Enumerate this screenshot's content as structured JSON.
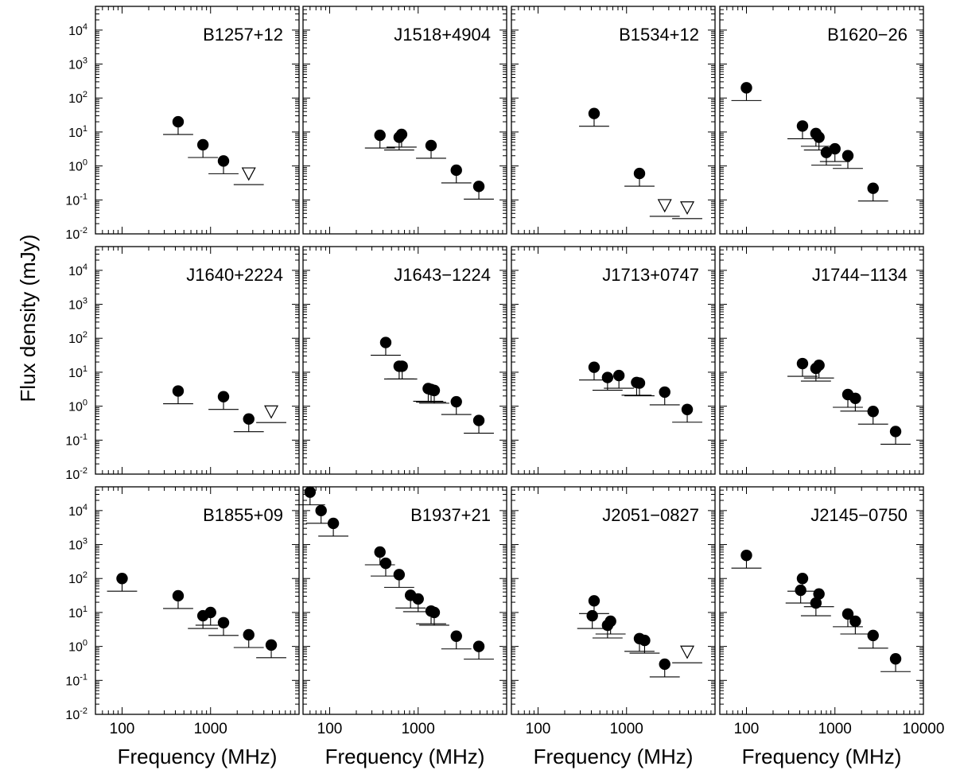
{
  "figure": {
    "ylabel": "Flux density (mJy)",
    "xlabel": "Frequency (MHz)",
    "y_tick_labels": [
      {
        "base": "10",
        "exp": "4"
      },
      {
        "base": "10",
        "exp": "3"
      },
      {
        "base": "10",
        "exp": "2"
      },
      {
        "base": "10",
        "exp": "1"
      },
      {
        "base": "10",
        "exp": "0"
      },
      {
        "base": "10",
        "exp": "-1"
      },
      {
        "base": "10",
        "exp": "-2"
      }
    ],
    "y_tick_values": [
      10000,
      1000,
      100,
      10,
      1,
      0.1,
      0.01
    ],
    "x_tick_labels_by_column": [
      [
        "100",
        "1000"
      ],
      [
        "100",
        "1000"
      ],
      [
        "100",
        "1000"
      ],
      [
        "100",
        "1000",
        "10000"
      ]
    ],
    "x_tick_values_by_column": [
      [
        100,
        1000
      ],
      [
        100,
        1000
      ],
      [
        100,
        1000
      ],
      [
        100,
        1000,
        10000
      ]
    ]
  },
  "chart_data": [
    {
      "type": "scatter",
      "title": "B1257+12",
      "x_scale": "log",
      "y_scale": "log",
      "xlim": [
        50,
        10000
      ],
      "ylim": [
        0.01,
        50000
      ],
      "points": [
        {
          "x": 430,
          "y": 20
        },
        {
          "x": 820,
          "y": 4.2
        },
        {
          "x": 1400,
          "y": 1.4
        }
      ],
      "upper_limits": [
        {
          "x": 2700,
          "y": 0.6
        }
      ]
    },
    {
      "type": "scatter",
      "title": "J1518+4904",
      "x_scale": "log",
      "y_scale": "log",
      "xlim": [
        50,
        10000
      ],
      "ylim": [
        0.01,
        50000
      ],
      "points": [
        {
          "x": 370,
          "y": 8
        },
        {
          "x": 610,
          "y": 7
        },
        {
          "x": 650,
          "y": 8.5
        },
        {
          "x": 1400,
          "y": 4
        },
        {
          "x": 2700,
          "y": 0.75
        },
        {
          "x": 4850,
          "y": 0.25
        }
      ],
      "upper_limits": []
    },
    {
      "type": "scatter",
      "title": "B1534+12",
      "x_scale": "log",
      "y_scale": "log",
      "xlim": [
        50,
        10000
      ],
      "ylim": [
        0.01,
        50000
      ],
      "points": [
        {
          "x": 430,
          "y": 35
        },
        {
          "x": 1400,
          "y": 0.6
        }
      ],
      "upper_limits": [
        {
          "x": 2700,
          "y": 0.07
        },
        {
          "x": 4850,
          "y": 0.06
        }
      ]
    },
    {
      "type": "scatter",
      "title": "B1620−26",
      "x_scale": "log",
      "y_scale": "log",
      "xlim": [
        50,
        10000
      ],
      "ylim": [
        0.01,
        50000
      ],
      "points": [
        {
          "x": 100,
          "y": 200
        },
        {
          "x": 430,
          "y": 15
        },
        {
          "x": 610,
          "y": 9
        },
        {
          "x": 660,
          "y": 7
        },
        {
          "x": 800,
          "y": 2.5
        },
        {
          "x": 1000,
          "y": 3.2
        },
        {
          "x": 1400,
          "y": 2
        },
        {
          "x": 2700,
          "y": 0.22
        }
      ],
      "upper_limits": []
    },
    {
      "type": "scatter",
      "title": "J1640+2224",
      "x_scale": "log",
      "y_scale": "log",
      "xlim": [
        50,
        10000
      ],
      "ylim": [
        0.01,
        50000
      ],
      "points": [
        {
          "x": 430,
          "y": 2.8
        },
        {
          "x": 1400,
          "y": 1.9
        },
        {
          "x": 2700,
          "y": 0.42
        }
      ],
      "upper_limits": [
        {
          "x": 4850,
          "y": 0.7
        }
      ]
    },
    {
      "type": "scatter",
      "title": "J1643−1224",
      "x_scale": "log",
      "y_scale": "log",
      "xlim": [
        50,
        10000
      ],
      "ylim": [
        0.01,
        50000
      ],
      "points": [
        {
          "x": 430,
          "y": 75
        },
        {
          "x": 610,
          "y": 15
        },
        {
          "x": 660,
          "y": 15
        },
        {
          "x": 1300,
          "y": 3.3
        },
        {
          "x": 1400,
          "y": 3.1
        },
        {
          "x": 1520,
          "y": 2.9
        },
        {
          "x": 2700,
          "y": 1.35
        },
        {
          "x": 4850,
          "y": 0.38
        }
      ],
      "upper_limits": []
    },
    {
      "type": "scatter",
      "title": "J1713+0747",
      "x_scale": "log",
      "y_scale": "log",
      "xlim": [
        50,
        10000
      ],
      "ylim": [
        0.01,
        50000
      ],
      "points": [
        {
          "x": 430,
          "y": 14
        },
        {
          "x": 610,
          "y": 7
        },
        {
          "x": 820,
          "y": 8
        },
        {
          "x": 1300,
          "y": 5
        },
        {
          "x": 1400,
          "y": 4.8
        },
        {
          "x": 2700,
          "y": 2.6
        },
        {
          "x": 4850,
          "y": 0.8
        }
      ],
      "upper_limits": []
    },
    {
      "type": "scatter",
      "title": "J1744−1134",
      "x_scale": "log",
      "y_scale": "log",
      "xlim": [
        50,
        10000
      ],
      "ylim": [
        0.01,
        50000
      ],
      "points": [
        {
          "x": 430,
          "y": 18
        },
        {
          "x": 610,
          "y": 13
        },
        {
          "x": 660,
          "y": 16
        },
        {
          "x": 1400,
          "y": 2.2
        },
        {
          "x": 1700,
          "y": 1.7
        },
        {
          "x": 2700,
          "y": 0.7
        },
        {
          "x": 4850,
          "y": 0.18
        }
      ],
      "upper_limits": []
    },
    {
      "type": "scatter",
      "title": "B1855+09",
      "x_scale": "log",
      "y_scale": "log",
      "xlim": [
        50,
        10000
      ],
      "ylim": [
        0.01,
        50000
      ],
      "points": [
        {
          "x": 100,
          "y": 100
        },
        {
          "x": 430,
          "y": 31
        },
        {
          "x": 820,
          "y": 8
        },
        {
          "x": 1000,
          "y": 10
        },
        {
          "x": 1400,
          "y": 5
        },
        {
          "x": 2700,
          "y": 2.2
        },
        {
          "x": 4850,
          "y": 1.1
        }
      ],
      "upper_limits": []
    },
    {
      "type": "scatter",
      "title": "B1937+21",
      "x_scale": "log",
      "y_scale": "log",
      "xlim": [
        50,
        10000
      ],
      "ylim": [
        0.01,
        50000
      ],
      "points": [
        {
          "x": 60,
          "y": 35000
        },
        {
          "x": 80,
          "y": 10000
        },
        {
          "x": 110,
          "y": 4200
        },
        {
          "x": 370,
          "y": 600
        },
        {
          "x": 430,
          "y": 280
        },
        {
          "x": 610,
          "y": 130
        },
        {
          "x": 820,
          "y": 32
        },
        {
          "x": 1000,
          "y": 25
        },
        {
          "x": 1400,
          "y": 11
        },
        {
          "x": 1520,
          "y": 10
        },
        {
          "x": 2700,
          "y": 2
        },
        {
          "x": 4850,
          "y": 1
        }
      ],
      "upper_limits": []
    },
    {
      "type": "scatter",
      "title": "J2051−0827",
      "x_scale": "log",
      "y_scale": "log",
      "xlim": [
        50,
        10000
      ],
      "ylim": [
        0.01,
        50000
      ],
      "points": [
        {
          "x": 410,
          "y": 8
        },
        {
          "x": 430,
          "y": 22
        },
        {
          "x": 610,
          "y": 4.2
        },
        {
          "x": 660,
          "y": 5.5
        },
        {
          "x": 1400,
          "y": 1.7
        },
        {
          "x": 1600,
          "y": 1.5
        },
        {
          "x": 2700,
          "y": 0.3
        }
      ],
      "upper_limits": [
        {
          "x": 4850,
          "y": 0.7
        }
      ]
    },
    {
      "type": "scatter",
      "title": "J2145−0750",
      "x_scale": "log",
      "y_scale": "log",
      "xlim": [
        50,
        10000
      ],
      "ylim": [
        0.01,
        50000
      ],
      "points": [
        {
          "x": 100,
          "y": 480
        },
        {
          "x": 410,
          "y": 45
        },
        {
          "x": 430,
          "y": 100
        },
        {
          "x": 610,
          "y": 19
        },
        {
          "x": 660,
          "y": 35
        },
        {
          "x": 1400,
          "y": 9
        },
        {
          "x": 1700,
          "y": 5.5
        },
        {
          "x": 2700,
          "y": 2.1
        },
        {
          "x": 4850,
          "y": 0.43
        }
      ],
      "upper_limits": []
    }
  ]
}
